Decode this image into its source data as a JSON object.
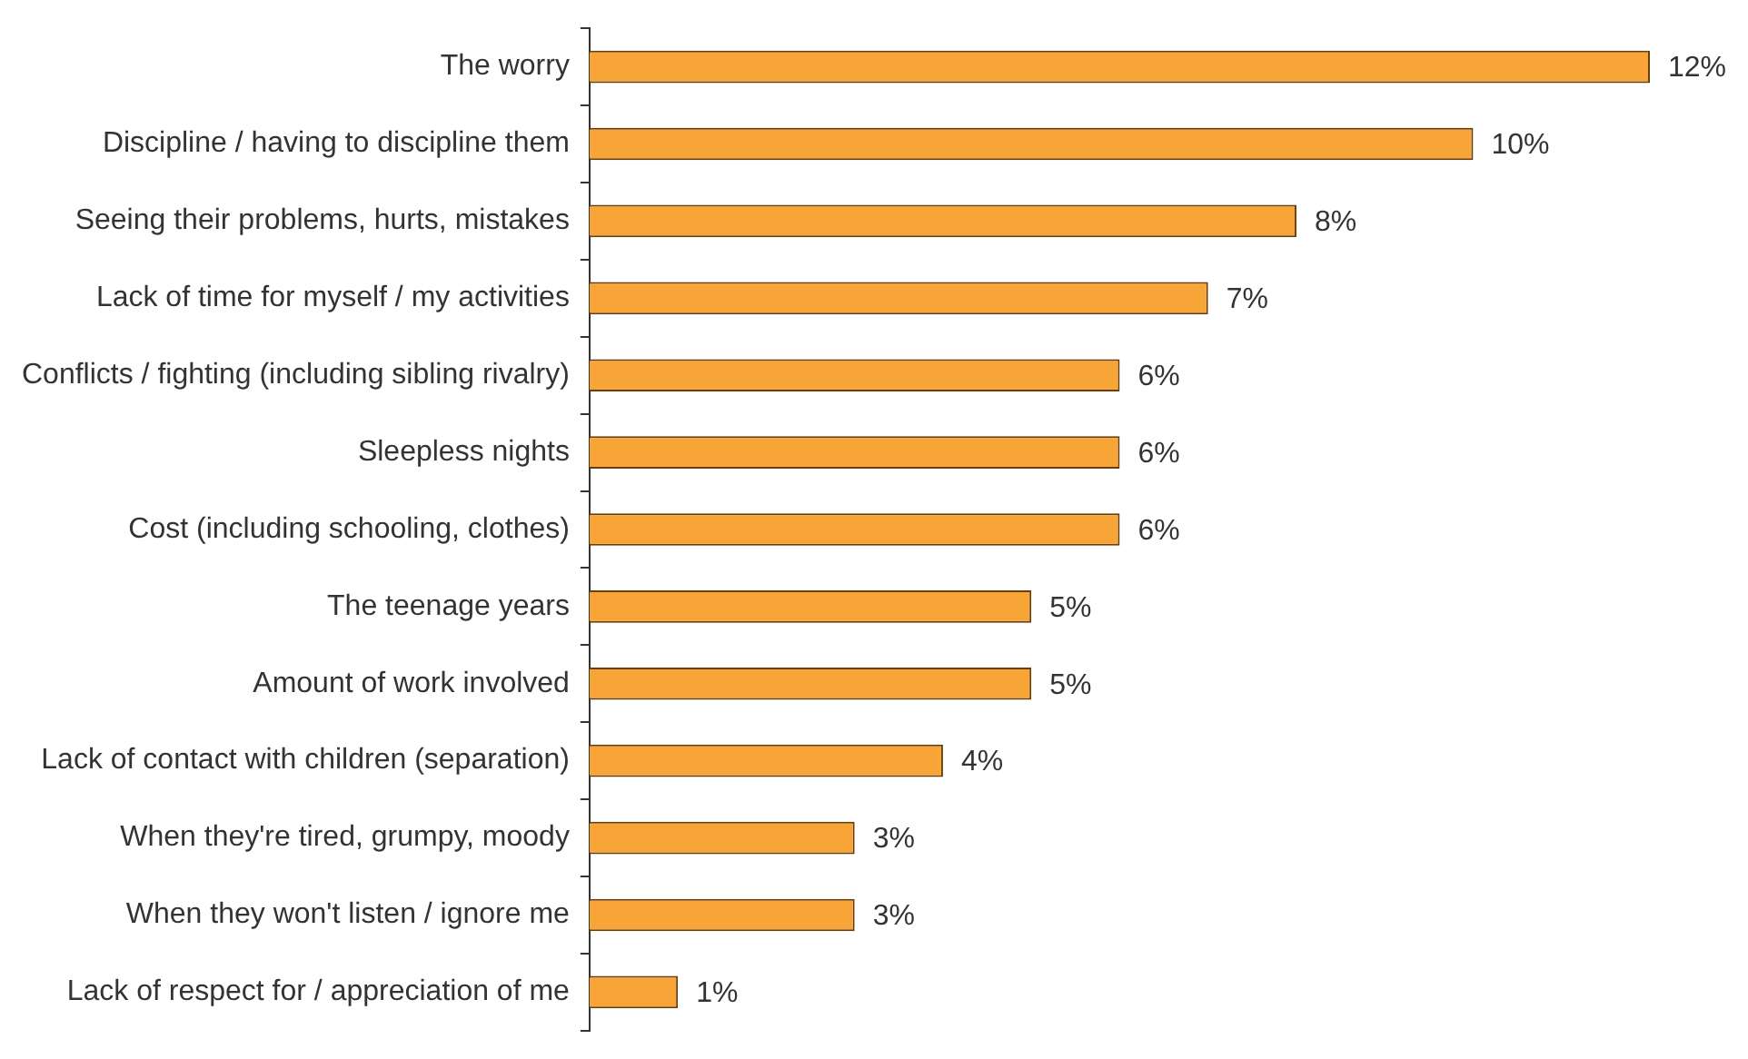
{
  "chart_data": {
    "type": "bar",
    "orientation": "horizontal",
    "categories": [
      "The worry",
      "Discipline / having to discipline them",
      "Seeing their problems, hurts, mistakes",
      "Lack of time for myself / my activities",
      "Conflicts / fighting (including sibling rivalry)",
      "Sleepless nights",
      "Cost (including schooling, clothes)",
      "The teenage years",
      "Amount of work involved",
      "Lack of contact with children (separation)",
      "When they're tired, grumpy, moody",
      "When they won't listen / ignore me",
      "Lack of respect for / appreciation of me"
    ],
    "values": [
      12,
      10,
      8,
      7,
      6,
      6,
      6,
      5,
      5,
      4,
      3,
      3,
      1
    ],
    "value_labels": [
      "12%",
      "10%",
      "8%",
      "7%",
      "6%",
      "6%",
      "6%",
      "5%",
      "5%",
      "4%",
      "3%",
      "3%",
      "1%"
    ],
    "color": "#f7a536",
    "tick_labels": "y",
    "grid": false,
    "legend": false
  }
}
